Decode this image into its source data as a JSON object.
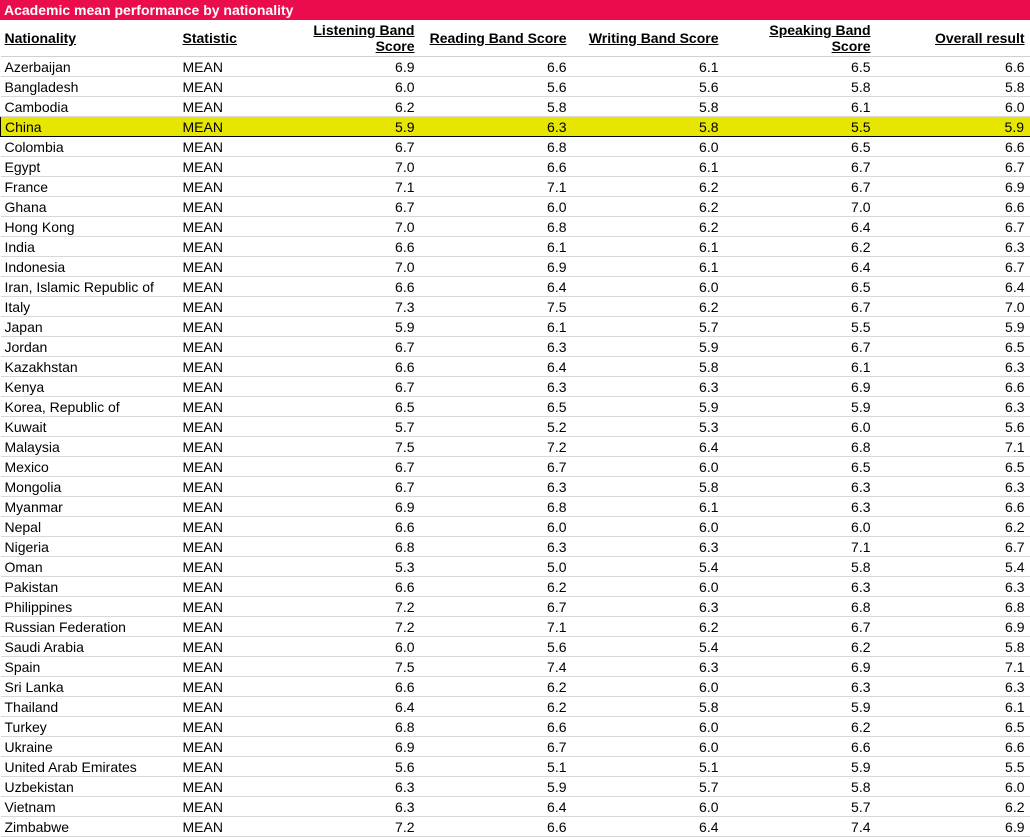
{
  "title": "Academic mean performance by nationality",
  "columns": [
    {
      "key": "nationality",
      "label": "Nationality",
      "align": "left"
    },
    {
      "key": "statistic",
      "label": "Statistic",
      "align": "left"
    },
    {
      "key": "listening",
      "label": "Listening Band Score",
      "align": "right"
    },
    {
      "key": "reading",
      "label": "Reading Band Score",
      "align": "right"
    },
    {
      "key": "writing",
      "label": "Writing Band Score",
      "align": "right"
    },
    {
      "key": "speaking",
      "label": "Speaking Band Score",
      "align": "right"
    },
    {
      "key": "overall",
      "label": "Overall result",
      "align": "right"
    }
  ],
  "highlight_row_index": 3,
  "highlight_color": "#e6e600",
  "title_bar_color": "#eb0c4d",
  "rows": [
    {
      "nationality": "Azerbaijan",
      "statistic": "MEAN",
      "listening": "6.9",
      "reading": "6.6",
      "writing": "6.1",
      "speaking": "6.5",
      "overall": "6.6"
    },
    {
      "nationality": "Bangladesh",
      "statistic": "MEAN",
      "listening": "6.0",
      "reading": "5.6",
      "writing": "5.6",
      "speaking": "5.8",
      "overall": "5.8"
    },
    {
      "nationality": "Cambodia",
      "statistic": "MEAN",
      "listening": "6.2",
      "reading": "5.8",
      "writing": "5.8",
      "speaking": "6.1",
      "overall": "6.0"
    },
    {
      "nationality": "China",
      "statistic": "MEAN",
      "listening": "5.9",
      "reading": "6.3",
      "writing": "5.8",
      "speaking": "5.5",
      "overall": "5.9"
    },
    {
      "nationality": "Colombia",
      "statistic": "MEAN",
      "listening": "6.7",
      "reading": "6.8",
      "writing": "6.0",
      "speaking": "6.5",
      "overall": "6.6"
    },
    {
      "nationality": "Egypt",
      "statistic": "MEAN",
      "listening": "7.0",
      "reading": "6.6",
      "writing": "6.1",
      "speaking": "6.7",
      "overall": "6.7"
    },
    {
      "nationality": "France",
      "statistic": "MEAN",
      "listening": "7.1",
      "reading": "7.1",
      "writing": "6.2",
      "speaking": "6.7",
      "overall": "6.9"
    },
    {
      "nationality": "Ghana",
      "statistic": "MEAN",
      "listening": "6.7",
      "reading": "6.0",
      "writing": "6.2",
      "speaking": "7.0",
      "overall": "6.6"
    },
    {
      "nationality": "Hong Kong",
      "statistic": "MEAN",
      "listening": "7.0",
      "reading": "6.8",
      "writing": "6.2",
      "speaking": "6.4",
      "overall": "6.7"
    },
    {
      "nationality": "India",
      "statistic": "MEAN",
      "listening": "6.6",
      "reading": "6.1",
      "writing": "6.1",
      "speaking": "6.2",
      "overall": "6.3"
    },
    {
      "nationality": "Indonesia",
      "statistic": "MEAN",
      "listening": "7.0",
      "reading": "6.9",
      "writing": "6.1",
      "speaking": "6.4",
      "overall": "6.7"
    },
    {
      "nationality": "Iran, Islamic Republic of",
      "statistic": "MEAN",
      "listening": "6.6",
      "reading": "6.4",
      "writing": "6.0",
      "speaking": "6.5",
      "overall": "6.4"
    },
    {
      "nationality": "Italy",
      "statistic": "MEAN",
      "listening": "7.3",
      "reading": "7.5",
      "writing": "6.2",
      "speaking": "6.7",
      "overall": "7.0"
    },
    {
      "nationality": "Japan",
      "statistic": "MEAN",
      "listening": "5.9",
      "reading": "6.1",
      "writing": "5.7",
      "speaking": "5.5",
      "overall": "5.9"
    },
    {
      "nationality": "Jordan",
      "statistic": "MEAN",
      "listening": "6.7",
      "reading": "6.3",
      "writing": "5.9",
      "speaking": "6.7",
      "overall": "6.5"
    },
    {
      "nationality": "Kazakhstan",
      "statistic": "MEAN",
      "listening": "6.6",
      "reading": "6.4",
      "writing": "5.8",
      "speaking": "6.1",
      "overall": "6.3"
    },
    {
      "nationality": "Kenya",
      "statistic": "MEAN",
      "listening": "6.7",
      "reading": "6.3",
      "writing": "6.3",
      "speaking": "6.9",
      "overall": "6.6"
    },
    {
      "nationality": "Korea, Republic of",
      "statistic": "MEAN",
      "listening": "6.5",
      "reading": "6.5",
      "writing": "5.9",
      "speaking": "5.9",
      "overall": "6.3"
    },
    {
      "nationality": "Kuwait",
      "statistic": "MEAN",
      "listening": "5.7",
      "reading": "5.2",
      "writing": "5.3",
      "speaking": "6.0",
      "overall": "5.6"
    },
    {
      "nationality": "Malaysia",
      "statistic": "MEAN",
      "listening": "7.5",
      "reading": "7.2",
      "writing": "6.4",
      "speaking": "6.8",
      "overall": "7.1"
    },
    {
      "nationality": "Mexico",
      "statistic": "MEAN",
      "listening": "6.7",
      "reading": "6.7",
      "writing": "6.0",
      "speaking": "6.5",
      "overall": "6.5"
    },
    {
      "nationality": "Mongolia",
      "statistic": "MEAN",
      "listening": "6.7",
      "reading": "6.3",
      "writing": "5.8",
      "speaking": "6.3",
      "overall": "6.3"
    },
    {
      "nationality": "Myanmar",
      "statistic": "MEAN",
      "listening": "6.9",
      "reading": "6.8",
      "writing": "6.1",
      "speaking": "6.3",
      "overall": "6.6"
    },
    {
      "nationality": "Nepal",
      "statistic": "MEAN",
      "listening": "6.6",
      "reading": "6.0",
      "writing": "6.0",
      "speaking": "6.0",
      "overall": "6.2"
    },
    {
      "nationality": "Nigeria",
      "statistic": "MEAN",
      "listening": "6.8",
      "reading": "6.3",
      "writing": "6.3",
      "speaking": "7.1",
      "overall": "6.7"
    },
    {
      "nationality": "Oman",
      "statistic": "MEAN",
      "listening": "5.3",
      "reading": "5.0",
      "writing": "5.4",
      "speaking": "5.8",
      "overall": "5.4"
    },
    {
      "nationality": "Pakistan",
      "statistic": "MEAN",
      "listening": "6.6",
      "reading": "6.2",
      "writing": "6.0",
      "speaking": "6.3",
      "overall": "6.3"
    },
    {
      "nationality": "Philippines",
      "statistic": "MEAN",
      "listening": "7.2",
      "reading": "6.7",
      "writing": "6.3",
      "speaking": "6.8",
      "overall": "6.8"
    },
    {
      "nationality": "Russian Federation",
      "statistic": "MEAN",
      "listening": "7.2",
      "reading": "7.1",
      "writing": "6.2",
      "speaking": "6.7",
      "overall": "6.9"
    },
    {
      "nationality": "Saudi Arabia",
      "statistic": "MEAN",
      "listening": "6.0",
      "reading": "5.6",
      "writing": "5.4",
      "speaking": "6.2",
      "overall": "5.8"
    },
    {
      "nationality": "Spain",
      "statistic": "MEAN",
      "listening": "7.5",
      "reading": "7.4",
      "writing": "6.3",
      "speaking": "6.9",
      "overall": "7.1"
    },
    {
      "nationality": "Sri Lanka",
      "statistic": "MEAN",
      "listening": "6.6",
      "reading": "6.2",
      "writing": "6.0",
      "speaking": "6.3",
      "overall": "6.3"
    },
    {
      "nationality": "Thailand",
      "statistic": "MEAN",
      "listening": "6.4",
      "reading": "6.2",
      "writing": "5.8",
      "speaking": "5.9",
      "overall": "6.1"
    },
    {
      "nationality": "Turkey",
      "statistic": "MEAN",
      "listening": "6.8",
      "reading": "6.6",
      "writing": "6.0",
      "speaking": "6.2",
      "overall": "6.5"
    },
    {
      "nationality": "Ukraine",
      "statistic": "MEAN",
      "listening": "6.9",
      "reading": "6.7",
      "writing": "6.0",
      "speaking": "6.6",
      "overall": "6.6"
    },
    {
      "nationality": "United Arab Emirates",
      "statistic": "MEAN",
      "listening": "5.6",
      "reading": "5.1",
      "writing": "5.1",
      "speaking": "5.9",
      "overall": "5.5"
    },
    {
      "nationality": "Uzbekistan",
      "statistic": "MEAN",
      "listening": "6.3",
      "reading": "5.9",
      "writing": "5.7",
      "speaking": "5.8",
      "overall": "6.0"
    },
    {
      "nationality": "Vietnam",
      "statistic": "MEAN",
      "listening": "6.3",
      "reading": "6.4",
      "writing": "6.0",
      "speaking": "5.7",
      "overall": "6.2"
    },
    {
      "nationality": "Zimbabwe",
      "statistic": "MEAN",
      "listening": "7.2",
      "reading": "6.6",
      "writing": "6.4",
      "speaking": "7.4",
      "overall": "6.9"
    }
  ]
}
